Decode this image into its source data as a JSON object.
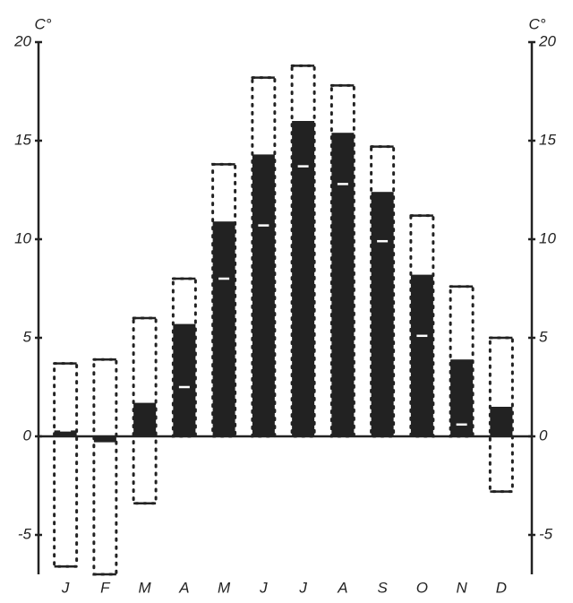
{
  "chart_data": {
    "type": "bar",
    "y_label": "C°",
    "categories": [
      "J",
      "F",
      "M",
      "A",
      "M",
      "J",
      "J",
      "A",
      "S",
      "O",
      "N",
      "D"
    ],
    "series": [
      {
        "style": "bar",
        "color": "#222222",
        "values": [
          0.3,
          -0.3,
          1.7,
          5.7,
          10.9,
          14.3,
          16.0,
          15.4,
          12.4,
          8.2,
          3.9,
          1.5
        ]
      },
      {
        "style": "dash",
        "color": "#ffffff",
        "values": [
          0.3,
          null,
          null,
          2.5,
          8.0,
          10.7,
          13.7,
          12.8,
          9.9,
          5.1,
          0.6,
          null
        ]
      },
      {
        "style": "range-top",
        "color": "#222222",
        "values": [
          3.7,
          3.9,
          6.0,
          8.0,
          13.8,
          18.2,
          18.8,
          17.8,
          14.7,
          11.2,
          7.6,
          5.0
        ]
      },
      {
        "style": "range-bottom",
        "color": "#222222",
        "values": [
          -6.6,
          -7.0,
          -3.4,
          0,
          0,
          0,
          0,
          0,
          0,
          0,
          0,
          -2.8
        ]
      }
    ],
    "ylim": [
      -7,
      20
    ],
    "yticks": [
      -5,
      0,
      5,
      10,
      15,
      20
    ]
  }
}
